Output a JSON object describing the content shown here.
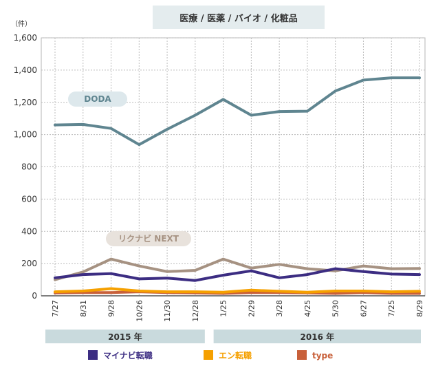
{
  "chart_data": {
    "type": "line",
    "title": "医療 / 医薬 / バイオ / 化粧品",
    "ylabel": "（件）",
    "ylim": [
      0,
      1600
    ],
    "yticks": [
      "0",
      "200",
      "400",
      "600",
      "800",
      "1,000",
      "1,200",
      "1,400",
      "1,600"
    ],
    "yticks_values": [
      0,
      200,
      400,
      600,
      800,
      1000,
      1200,
      1400,
      1600
    ],
    "categories": [
      "7/27",
      "8/31",
      "9/28",
      "10/26",
      "11/30",
      "12/28",
      "1/25",
      "2/29",
      "3/28",
      "4/25",
      "5/30",
      "6/27",
      "7/25",
      "8/29"
    ],
    "years": [
      {
        "label": "2015 年",
        "from": 0,
        "to": 5
      },
      {
        "label": "2016 年",
        "from": 6,
        "to": 13
      }
    ],
    "grid": true,
    "series": [
      {
        "name": "DODA",
        "color": "#5f8590",
        "label_bg": "#dde8ec",
        "label_color": "#5f8590",
        "values": [
          1060,
          1063,
          1038,
          938,
          1033,
          1120,
          1218,
          1120,
          1143,
          1145,
          1270,
          1338,
          1352,
          1352
        ]
      },
      {
        "name": "リクナビ NEXT",
        "color": "#a69282",
        "label_bg": "#e8e2dc",
        "label_color": "#a69282",
        "values": [
          100,
          148,
          228,
          185,
          150,
          158,
          228,
          172,
          195,
          168,
          155,
          185,
          168,
          170
        ]
      },
      {
        "name": "マイナビ転職",
        "color": "#3c2d82",
        "values": [
          112,
          132,
          138,
          105,
          110,
          95,
          128,
          155,
          112,
          132,
          168,
          150,
          135,
          132
        ]
      },
      {
        "name": "エン転職",
        "color": "#f5a000",
        "values": [
          25,
          30,
          45,
          30,
          25,
          25,
          22,
          35,
          28,
          22,
          30,
          30,
          25,
          28
        ]
      },
      {
        "name": "type",
        "color": "#c8603a",
        "values": [
          18,
          20,
          20,
          25,
          20,
          18,
          15,
          20,
          20,
          18,
          15,
          20,
          15,
          15
        ]
      }
    ],
    "legend": [
      {
        "name": "マイナビ転職",
        "color": "#3c2d82"
      },
      {
        "name": "エン転職",
        "color": "#f5a000"
      },
      {
        "name": "type",
        "color": "#c8603a"
      }
    ]
  }
}
